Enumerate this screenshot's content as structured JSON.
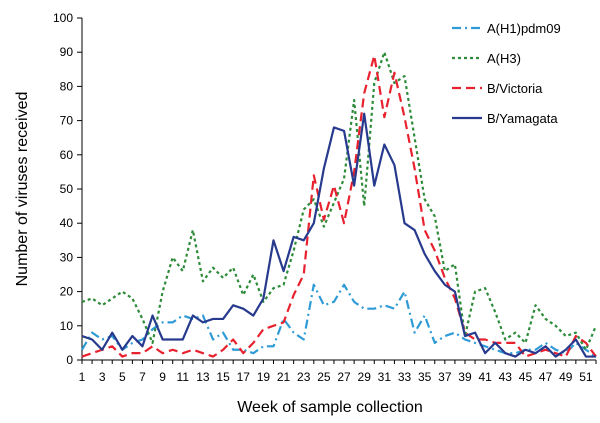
{
  "chart_data": {
    "type": "line",
    "xlabel": "Week of sample collection",
    "ylabel": "Number of viruses received",
    "ylim": [
      0,
      100
    ],
    "yticks": [
      0,
      10,
      20,
      30,
      40,
      50,
      60,
      70,
      80,
      90,
      100
    ],
    "xlim": [
      1,
      52
    ],
    "xtick_labels": [
      "1",
      "3",
      "5",
      "7",
      "9",
      "11",
      "13",
      "15",
      "17",
      "19",
      "21",
      "23",
      "25",
      "27",
      "29",
      "31",
      "33",
      "35",
      "37",
      "39",
      "41",
      "43",
      "45",
      "47",
      "49",
      "51"
    ],
    "grid": false,
    "legend_position": "top-right",
    "x": [
      1,
      2,
      3,
      4,
      5,
      6,
      7,
      8,
      9,
      10,
      11,
      12,
      13,
      14,
      15,
      16,
      17,
      18,
      19,
      20,
      21,
      22,
      23,
      24,
      25,
      26,
      27,
      28,
      29,
      30,
      31,
      32,
      33,
      34,
      35,
      36,
      37,
      38,
      39,
      40,
      41,
      42,
      43,
      44,
      45,
      46,
      47,
      48,
      49,
      50,
      51,
      52
    ],
    "series": [
      {
        "name": "A(H1)pdm09",
        "color": "#2f9bd6",
        "dash": "dashdot",
        "values": [
          3,
          8,
          6,
          7,
          3,
          5,
          6,
          9,
          11,
          11,
          13,
          12,
          13,
          6,
          8,
          3,
          3,
          2,
          4,
          4,
          12,
          8,
          6,
          22,
          16,
          17,
          22,
          17,
          15,
          15,
          16,
          15,
          20,
          8,
          13,
          5,
          7,
          8,
          6,
          5,
          4,
          3,
          2,
          2,
          3,
          3,
          5,
          3,
          2,
          5,
          3,
          1
        ]
      },
      {
        "name": "A(H3)",
        "color": "#2e8b3a",
        "dash": "dotted",
        "values": [
          17,
          18,
          16,
          18,
          20,
          18,
          12,
          5,
          20,
          30,
          26,
          38,
          23,
          27,
          24,
          27,
          19,
          25,
          17,
          21,
          22,
          32,
          44,
          47,
          39,
          46,
          53,
          76,
          45,
          81,
          90,
          81,
          83,
          65,
          47,
          42,
          26,
          28,
          7,
          20,
          21,
          14,
          6,
          8,
          5,
          16,
          12,
          10,
          7,
          8,
          3,
          10
        ]
      },
      {
        "name": "B/Victoria",
        "color": "#e8212e",
        "dash": "dashed",
        "values": [
          1,
          2,
          3,
          4,
          1,
          2,
          2,
          4,
          2,
          3,
          2,
          3,
          2,
          1,
          3,
          6,
          2,
          5,
          9,
          10,
          11,
          19,
          25,
          54,
          41,
          51,
          40,
          55,
          78,
          89,
          71,
          84,
          71,
          56,
          38,
          32,
          24,
          18,
          8,
          6,
          6,
          5,
          5,
          5,
          1,
          2,
          3,
          2,
          1,
          7,
          5,
          1
        ]
      },
      {
        "name": "B/Yamagata",
        "color": "#273a8e",
        "dash": "solid",
        "values": [
          7,
          6,
          3,
          8,
          3,
          7,
          4,
          13,
          6,
          6,
          6,
          13,
          11,
          12,
          12,
          16,
          15,
          13,
          18,
          35,
          26,
          36,
          35,
          40,
          56,
          68,
          67,
          51,
          72,
          51,
          63,
          57,
          40,
          38,
          31,
          26,
          22,
          20,
          7,
          8,
          2,
          5,
          2,
          1,
          3,
          2,
          4,
          1,
          3,
          6,
          1,
          1
        ]
      }
    ]
  }
}
